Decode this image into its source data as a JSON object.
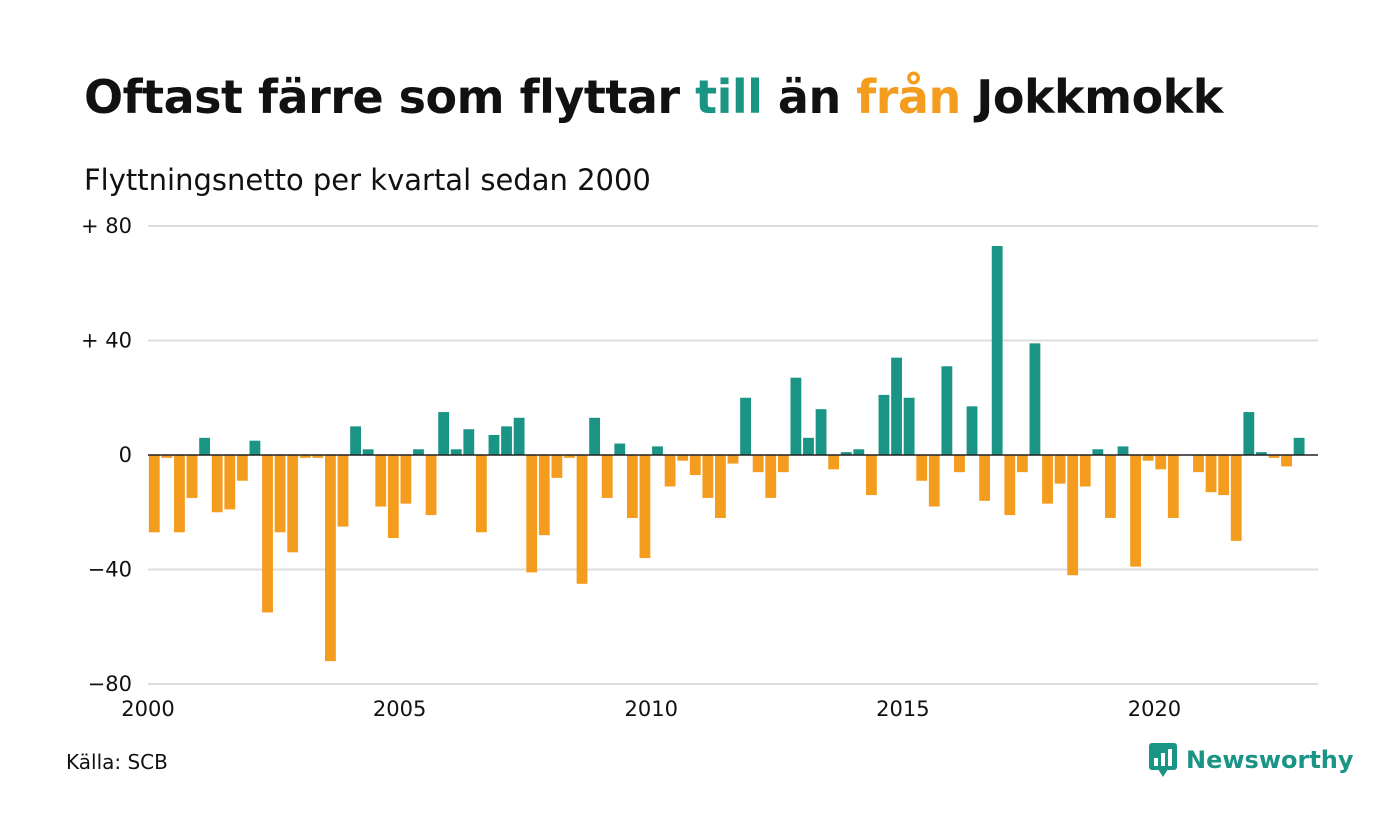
{
  "header": {
    "title_parts": [
      "Oftast färre som flyttar ",
      "till",
      " än ",
      "från",
      " Jokkmokk"
    ],
    "subtitle": "Flyttningsnetto per kvartal sedan 2000"
  },
  "footer": {
    "source": "Källa: SCB",
    "brand": "Newsworthy"
  },
  "colors": {
    "positive": "#1a9484",
    "negative": "#f49c1e",
    "grid": "#dddddd",
    "zero_line": "#222222",
    "text": "#111111",
    "brand": "#1a9484"
  },
  "chart_data": {
    "type": "bar",
    "title": "Flyttningsnetto per kvartal sedan 2000",
    "xlabel": "",
    "ylabel": "",
    "ylim": [
      -80,
      80
    ],
    "xlim": [
      2000,
      2023.25
    ],
    "grid": true,
    "legend": "none",
    "y_ticks": [
      {
        "value": 80,
        "label": "+ 80"
      },
      {
        "value": 40,
        "label": "+ 40"
      },
      {
        "value": 0,
        "label": "0"
      },
      {
        "value": -40,
        "label": "−40"
      },
      {
        "value": -80,
        "label": "−80"
      }
    ],
    "x_ticks": [
      {
        "value": 2000,
        "label": "2000"
      },
      {
        "value": 2005,
        "label": "2005"
      },
      {
        "value": 2010,
        "label": "2010"
      },
      {
        "value": 2015,
        "label": "2015"
      },
      {
        "value": 2020,
        "label": "2020"
      }
    ],
    "categories": [
      "2000 Q1",
      "2000 Q2",
      "2000 Q3",
      "2000 Q4",
      "2001 Q1",
      "2001 Q2",
      "2001 Q3",
      "2001 Q4",
      "2002 Q1",
      "2002 Q2",
      "2002 Q3",
      "2002 Q4",
      "2003 Q1",
      "2003 Q2",
      "2003 Q3",
      "2003 Q4",
      "2004 Q1",
      "2004 Q2",
      "2004 Q3",
      "2004 Q4",
      "2005 Q1",
      "2005 Q2",
      "2005 Q3",
      "2005 Q4",
      "2006 Q1",
      "2006 Q2",
      "2006 Q3",
      "2006 Q4",
      "2007 Q1",
      "2007 Q2",
      "2007 Q3",
      "2007 Q4",
      "2008 Q1",
      "2008 Q2",
      "2008 Q3",
      "2008 Q4",
      "2009 Q1",
      "2009 Q2",
      "2009 Q3",
      "2009 Q4",
      "2010 Q1",
      "2010 Q2",
      "2010 Q3",
      "2010 Q4",
      "2011 Q1",
      "2011 Q2",
      "2011 Q3",
      "2011 Q4",
      "2012 Q1",
      "2012 Q2",
      "2012 Q3",
      "2012 Q4",
      "2013 Q1",
      "2013 Q2",
      "2013 Q3",
      "2013 Q4",
      "2014 Q1",
      "2014 Q2",
      "2014 Q3",
      "2014 Q4",
      "2015 Q1",
      "2015 Q2",
      "2015 Q3",
      "2015 Q4",
      "2016 Q1",
      "2016 Q2",
      "2016 Q3",
      "2016 Q4",
      "2017 Q1",
      "2017 Q2",
      "2017 Q3",
      "2017 Q4",
      "2018 Q1",
      "2018 Q2",
      "2018 Q3",
      "2018 Q4",
      "2019 Q1",
      "2019 Q2",
      "2019 Q3",
      "2019 Q4",
      "2020 Q1",
      "2020 Q2",
      "2020 Q3",
      "2020 Q4",
      "2021 Q1",
      "2021 Q2",
      "2021 Q3",
      "2021 Q4",
      "2022 Q1",
      "2022 Q2",
      "2022 Q3",
      "2022 Q4",
      "2023 Q1"
    ],
    "values": [
      -27,
      -1,
      -27,
      -15,
      6,
      -20,
      -19,
      -9,
      5,
      -55,
      -27,
      -34,
      -1,
      -1,
      -72,
      -25,
      10,
      2,
      -18,
      -29,
      -17,
      2,
      -21,
      15,
      2,
      9,
      -27,
      7,
      10,
      13,
      -41,
      -28,
      -8,
      -1,
      -45,
      13,
      -15,
      4,
      -22,
      -36,
      3,
      -11,
      -2,
      -7,
      -15,
      -22,
      -3,
      20,
      -6,
      -15,
      -6,
      27,
      6,
      16,
      -5,
      1,
      2,
      -14,
      21,
      34,
      20,
      -9,
      -18,
      31,
      -6,
      17,
      -16,
      73,
      -21,
      -6,
      39,
      -17,
      -10,
      -42,
      -11,
      2,
      -22,
      3,
      -39,
      -2,
      -5,
      -22,
      0,
      -6,
      -13,
      -14,
      -30,
      15,
      1,
      -1,
      -4,
      6,
      0
    ]
  }
}
